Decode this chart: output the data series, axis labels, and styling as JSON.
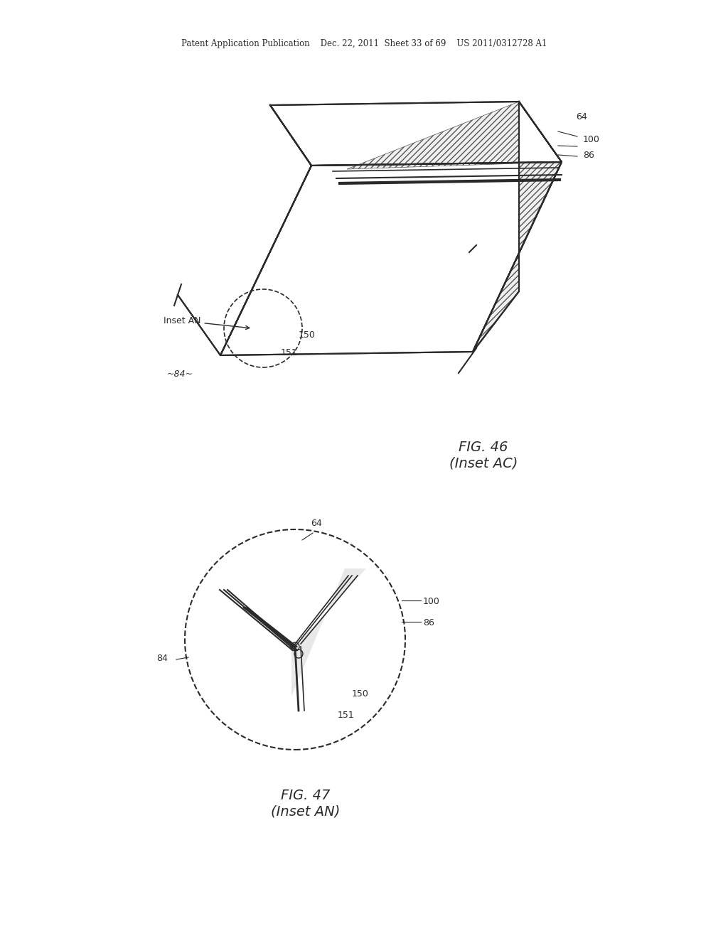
{
  "bg_color": "#ffffff",
  "line_color": "#2a2a2a",
  "hatch_color": "#555555",
  "header_text": "Patent Application Publication    Dec. 22, 2011  Sheet 33 of 69    US 2011/0312728 A1",
  "fig46_caption": "FIG. 46\n(Inset AC)",
  "fig47_caption": "FIG. 47\n(Inset AN)",
  "label_64_fig46": "64",
  "label_100_fig46": "100",
  "label_86_fig46": "86",
  "label_150_fig46": "150",
  "label_151_fig46": "151",
  "label_84_fig46": "~84~",
  "label_inset_an": "Inset AN",
  "label_64_fig47": "64",
  "label_100_fig47": "100",
  "label_86_fig47": "86",
  "label_150_fig47": "150",
  "label_151_fig47": "151",
  "label_84_fig47": "84"
}
